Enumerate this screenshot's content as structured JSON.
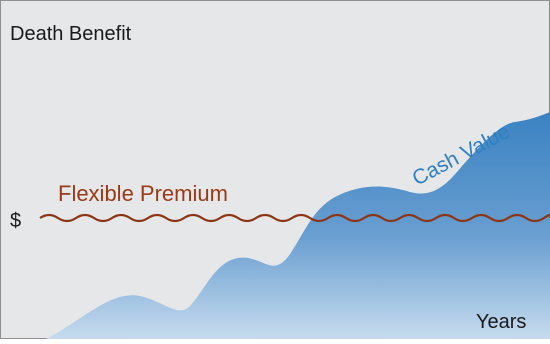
{
  "labels": {
    "death_benefit": "Death Benefit",
    "dollar": "$",
    "premium": "Flexible Premium",
    "cash_value": "Cash Value",
    "years": "Years"
  },
  "colors": {
    "panel": "#e6e7e8",
    "border": "#8e8e8e",
    "premium_line": "#8b3514",
    "premium_text": "#9a3a16",
    "cash_value_text": "#2f7fc2",
    "area_dark": "#3a82c2",
    "area_light": "#bcd3ea",
    "text_dark": "#1a1a1a"
  }
}
